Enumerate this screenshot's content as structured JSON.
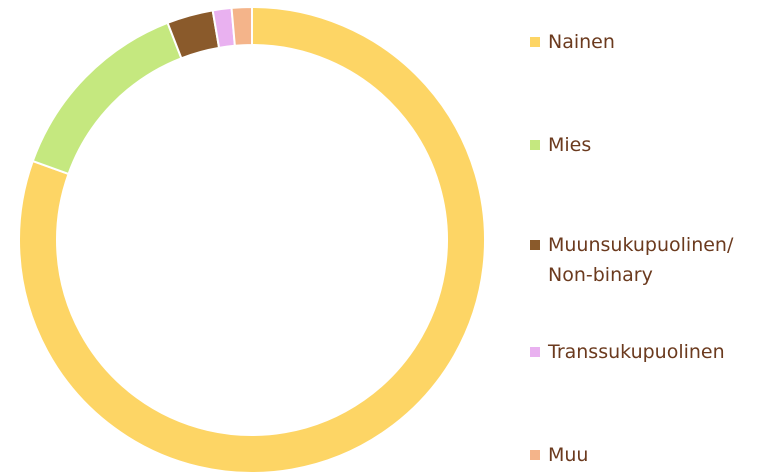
{
  "chart_data": {
    "type": "donut",
    "categories": [
      "Nainen",
      "Mies",
      "Muunsukupuolinen/ Non-binary",
      "Transsukupuolinen",
      "Muu"
    ],
    "values": [
      80.5,
      13.6,
      3.2,
      1.3,
      1.4
    ],
    "colors": [
      "#fdd565",
      "#c5e87f",
      "#8a5a2b",
      "#e9b1f0",
      "#f4b48a"
    ],
    "legend": "right"
  }
}
